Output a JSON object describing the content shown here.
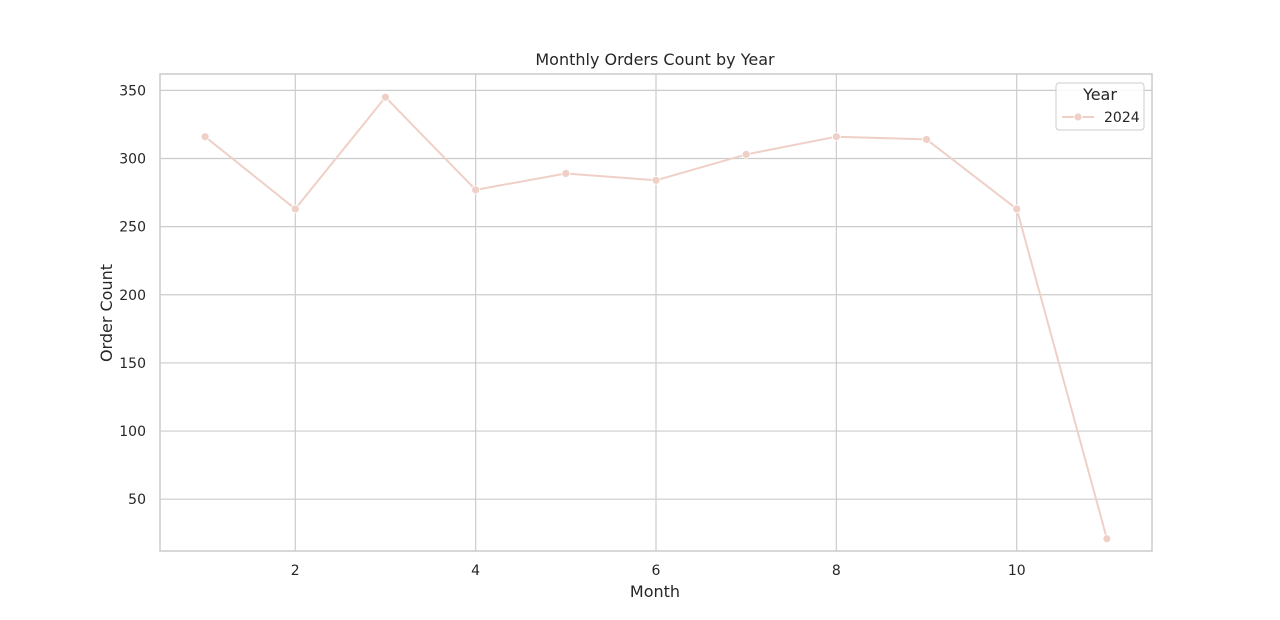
{
  "chart_data": {
    "type": "line",
    "title": "Monthly Orders Count by Year",
    "xlabel": "Month",
    "ylabel": "Order Count",
    "xlim": [
      0.5,
      11.5
    ],
    "ylim": [
      12,
      362
    ],
    "x_ticks": [
      2,
      4,
      6,
      8,
      10
    ],
    "y_ticks": [
      50,
      100,
      150,
      200,
      250,
      300,
      350
    ],
    "grid": true,
    "legend": {
      "title": "Year",
      "placement": "top-right"
    },
    "x": [
      1,
      2,
      3,
      4,
      5,
      6,
      7,
      8,
      9,
      10,
      11
    ],
    "series": [
      {
        "name": "2024",
        "color": "#efd0c7",
        "marker": "circle",
        "values": [
          316,
          263,
          345,
          277,
          289,
          284,
          303,
          316,
          314,
          263,
          21
        ]
      }
    ]
  }
}
